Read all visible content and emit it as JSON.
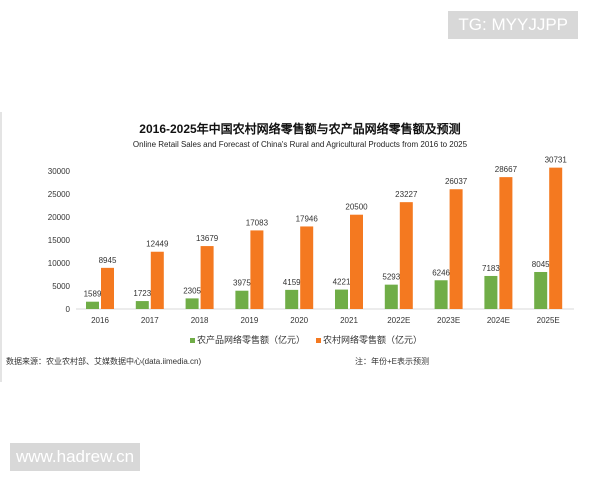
{
  "watermarks": {
    "top": "TG: MYYJJPP",
    "bottom": "www.hadrew.cn"
  },
  "chart_data": {
    "type": "bar",
    "title": "2016-2025年中国农村网络零售额与农产品网络零售额及预测",
    "subtitle": "Online Retail Sales and Forecast of China's Rural and Agricultural Products from 2016 to 2025",
    "categories": [
      "2016",
      "2017",
      "2018",
      "2019",
      "2020",
      "2021",
      "2022E",
      "2023E",
      "2024E",
      "2025E"
    ],
    "series": [
      {
        "name": "农产品网络零售额（亿元）",
        "color": "#70ad47",
        "values": [
          1589,
          1723,
          2305,
          3975,
          4159,
          4221,
          5293,
          6246,
          7183,
          8045
        ]
      },
      {
        "name": "农村网络零售额（亿元）",
        "color": "#f47920",
        "values": [
          8945,
          12449,
          13679,
          17083,
          17946,
          20500,
          23227,
          26037,
          28667,
          30731
        ]
      }
    ],
    "yticks": [
      "0",
      "5000",
      "10000",
      "15000",
      "20000",
      "25000",
      "30000"
    ],
    "ylim": [
      0,
      30000
    ],
    "legend": "bottom"
  },
  "source": "数据来源：农业农村部、艾媒数据中心(data.iimedia.cn)",
  "note": "注：年份+E表示预测"
}
